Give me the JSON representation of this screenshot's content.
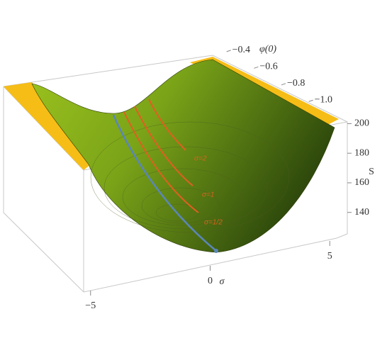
{
  "chart_data": {
    "type": "surface3d",
    "x_label": "σ",
    "y_label": "φ(0)",
    "z_label": "S",
    "xlim": [
      -6,
      6
    ],
    "xticks": [
      {
        "value": -5,
        "label": "−5"
      },
      0,
      5
    ],
    "ylim": [
      -1.1,
      -0.35
    ],
    "yticks": [
      {
        "value": -0.4,
        "label": "−0.4"
      },
      {
        "value": -0.6,
        "label": "−0.6"
      },
      {
        "value": -0.8,
        "label": "−0.8"
      },
      {
        "value": -1.0,
        "label": "−1.0"
      }
    ],
    "zlim": [
      125,
      205
    ],
    "zticks": [
      140,
      160,
      180,
      200
    ],
    "annotations": [
      "σ=2",
      "σ=1",
      "σ=1/2"
    ]
  }
}
